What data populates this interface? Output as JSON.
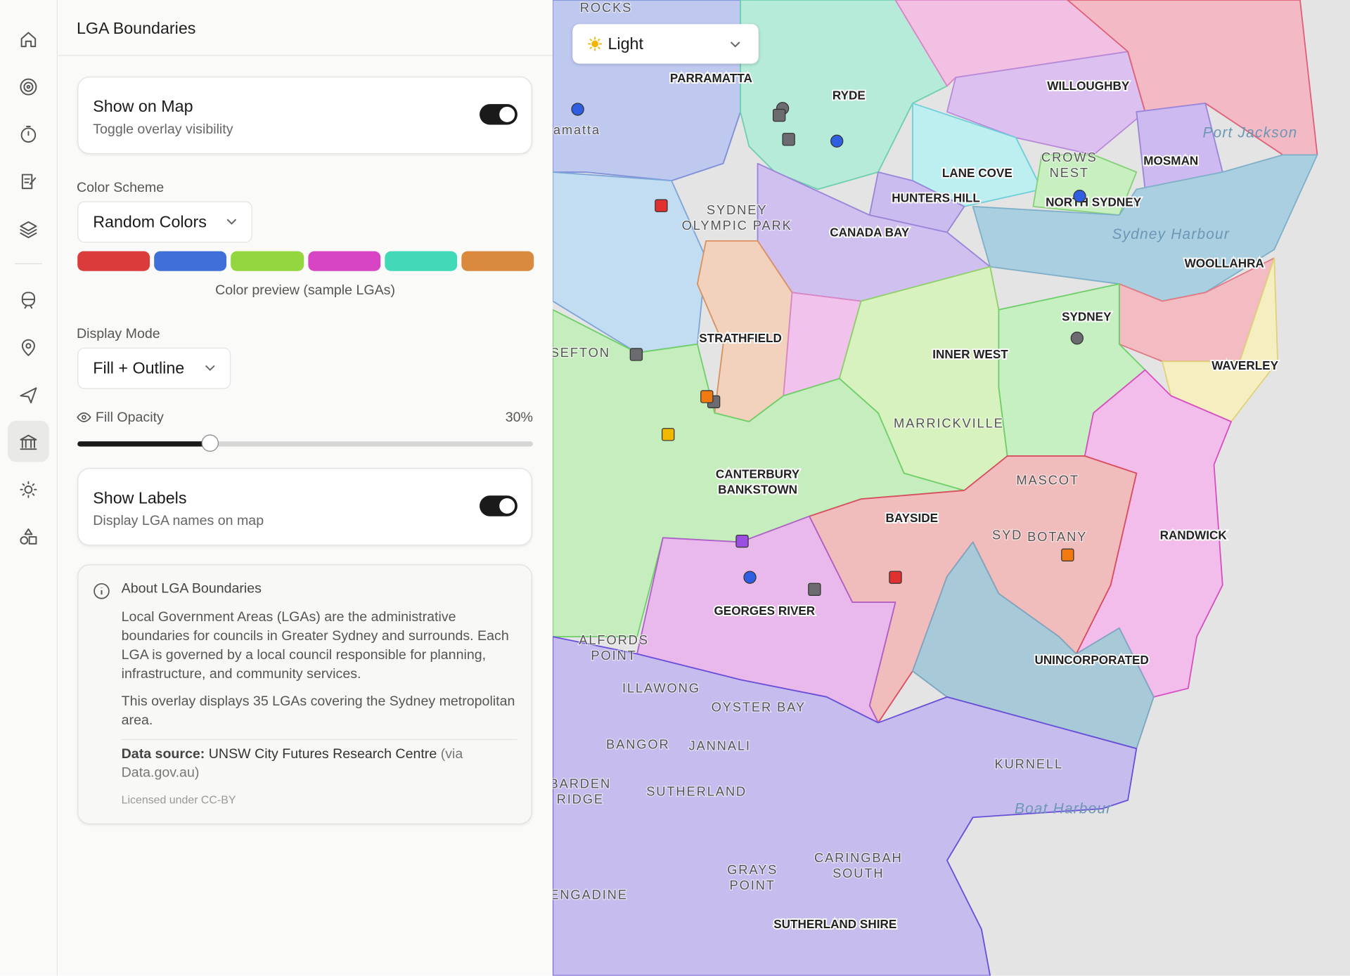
{
  "panel": {
    "title": "LGA Boundaries",
    "show_on_map": {
      "title": "Show on Map",
      "subtitle": "Toggle overlay visibility"
    },
    "color_scheme": {
      "label": "Color Scheme",
      "value": "Random Colors",
      "preview_colors": [
        "#dc3b3b",
        "#3f6fd8",
        "#94d640",
        "#d845c4",
        "#42d9b8",
        "#d98a3f"
      ],
      "caption": "Color preview (sample LGAs)"
    },
    "display_mode": {
      "label": "Display Mode",
      "value": "Fill + Outline"
    },
    "fill_opacity": {
      "label": "Fill Opacity",
      "value": "30%"
    },
    "show_labels": {
      "title": "Show Labels",
      "subtitle": "Display LGA names on map"
    },
    "about": {
      "title": "About LGA Boundaries",
      "paragraphs": [
        "Local Government Areas (LGAs) are the administrative boundaries for councils in Greater Sydney and surrounds. Each LGA is governed by a local council responsible for planning, infrastructure, and community services.",
        "This overlay displays 35 LGAs covering the Sydney metropolitan area."
      ],
      "source_label": "Data source:",
      "source": "UNSW City Futures Research Centre",
      "source_via": "(via Data.gov.au)",
      "license": "Licensed under CC-BY"
    }
  },
  "map": {
    "theme": "Light",
    "region_labels": [
      "PARRAMATTA",
      "RYDE",
      "WILLOUGHBY",
      "MOSMAN",
      "LANE COVE",
      "HUNTERS HILL",
      "NORTH SYDNEY",
      "CANADA BAY",
      "WOOLLAHRA",
      "STRATHFIELD",
      "SYDNEY",
      "INNER WEST",
      "WAVERLEY",
      "CANTERBURY",
      "BANKSTOWN",
      "BAYSIDE",
      "RANDWICK",
      "GEORGES RIVER",
      "UNINCORPORATED",
      "SUTHERLAND SHIRE"
    ],
    "place_labels": [
      "ROCKS",
      "amatta",
      "SYDNEY",
      "OLYMPIC PARK",
      "CROWS",
      "NEST",
      "SEFTON",
      "MARRICKVILLE",
      "MASCOT",
      "SYD",
      "BOTANY",
      "ALFORDS",
      "POINT",
      "ILLAWONG",
      "OYSTER BAY",
      "BANGOR",
      "JANNALI",
      "KURNELL",
      "BARDEN",
      "RIDGE",
      "SUTHERLAND",
      "GRAYS",
      "POINT",
      "CARINGBAH",
      "SOUTH",
      "ENGADINE"
    ],
    "water_labels": [
      "Port Jackson",
      "Sydney Harbour",
      "Boat Harbour"
    ]
  }
}
